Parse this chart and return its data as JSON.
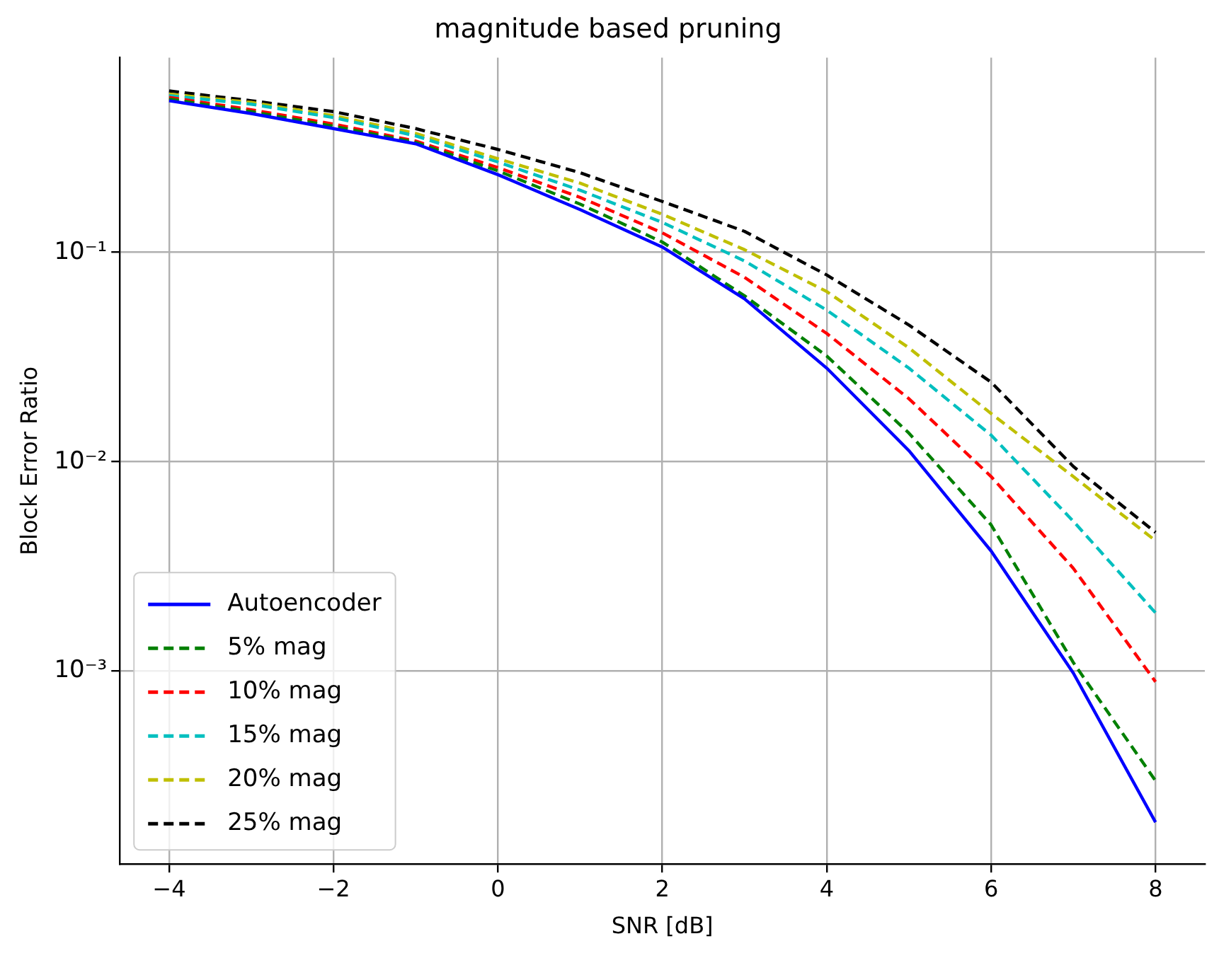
{
  "chart_data": {
    "type": "line",
    "title": "magnitude based pruning",
    "xlabel": "SNR [dB]",
    "ylabel": "Block Error Ratio",
    "x": [
      -4,
      -3,
      -2,
      -1,
      0,
      1,
      2,
      3,
      4,
      5,
      6,
      7,
      8
    ],
    "series": [
      {
        "name": "Autoencoder",
        "color": "#0000ff",
        "line_style": "solid",
        "values": [
          0.53,
          0.46,
          0.39,
          0.33,
          0.235,
          0.16,
          0.106,
          0.06,
          0.028,
          0.0113,
          0.00375,
          0.00098,
          0.00019
        ]
      },
      {
        "name": "5% mag",
        "color": "#008000",
        "line_style": "dashed",
        "values": [
          0.54,
          0.47,
          0.4,
          0.335,
          0.245,
          0.17,
          0.112,
          0.062,
          0.032,
          0.0137,
          0.005,
          0.0011,
          0.0003
        ]
      },
      {
        "name": "10% mag",
        "color": "#ff0000",
        "line_style": "dashed",
        "values": [
          0.55,
          0.48,
          0.41,
          0.34,
          0.254,
          0.183,
          0.124,
          0.076,
          0.041,
          0.02,
          0.0085,
          0.0031,
          0.00089
        ]
      },
      {
        "name": "15% mag",
        "color": "#00bfbf",
        "line_style": "dashed",
        "values": [
          0.56,
          0.51,
          0.44,
          0.36,
          0.27,
          0.198,
          0.139,
          0.091,
          0.053,
          0.028,
          0.0134,
          0.0052,
          0.0019
        ]
      },
      {
        "name": "20% mag",
        "color": "#bfbf00",
        "line_style": "dashed",
        "values": [
          0.57,
          0.52,
          0.45,
          0.37,
          0.28,
          0.214,
          0.152,
          0.103,
          0.065,
          0.035,
          0.017,
          0.0085,
          0.0042
        ]
      },
      {
        "name": "25% mag",
        "color": "#000000",
        "line_style": "dashed",
        "values": [
          0.59,
          0.53,
          0.47,
          0.39,
          0.31,
          0.24,
          0.175,
          0.126,
          0.078,
          0.045,
          0.024,
          0.0095,
          0.0046
        ]
      }
    ],
    "xlim": [
      -4.6,
      8.6
    ],
    "xticks": [
      -4,
      -2,
      0,
      2,
      4,
      6,
      8
    ],
    "ylim": [
      0.00012,
      0.85
    ],
    "yticks": [
      {
        "value": 0.001,
        "label": "10⁻³"
      },
      {
        "value": 0.01,
        "label": "10⁻²"
      },
      {
        "value": 0.1,
        "label": "10⁻¹"
      }
    ],
    "log": "y",
    "grid": true,
    "legend": "bottom left",
    "marker": "none"
  }
}
